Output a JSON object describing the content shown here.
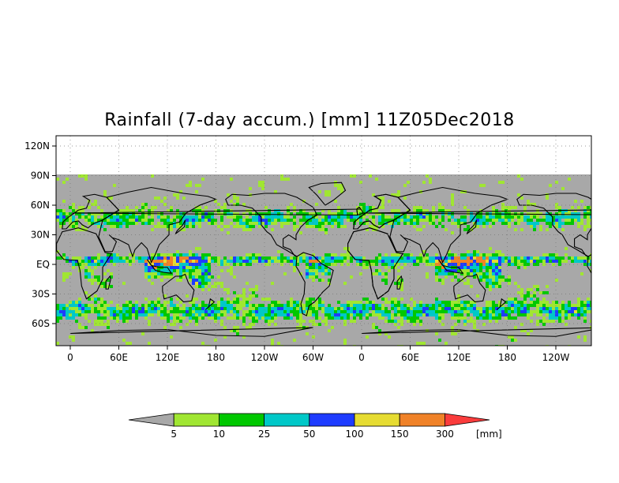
{
  "title": "Rainfall (7-day accum.) [mm] 11Z05Dec2018",
  "lat_ticks": [
    "120N",
    "90N",
    "60N",
    "30N",
    "EQ",
    "30S",
    "60S"
  ],
  "lon_ticks": [
    "0",
    "60E",
    "120E",
    "180",
    "120W",
    "60W",
    "0",
    "60E",
    "120E",
    "180",
    "120W"
  ],
  "colorbar": {
    "levels": [
      "5",
      "10",
      "25",
      "50",
      "100",
      "150",
      "300"
    ],
    "unit": "[mm]",
    "colors": [
      "#a8a8a8",
      "#a0e632",
      "#00c800",
      "#00c8c8",
      "#1e3cff",
      "#e6dc32",
      "#f08228",
      "#fa3c3c"
    ]
  },
  "colors": {
    "ocean_gray": "#a8a8a8",
    "no_data": "#ffffff",
    "coast": "#000000"
  }
}
